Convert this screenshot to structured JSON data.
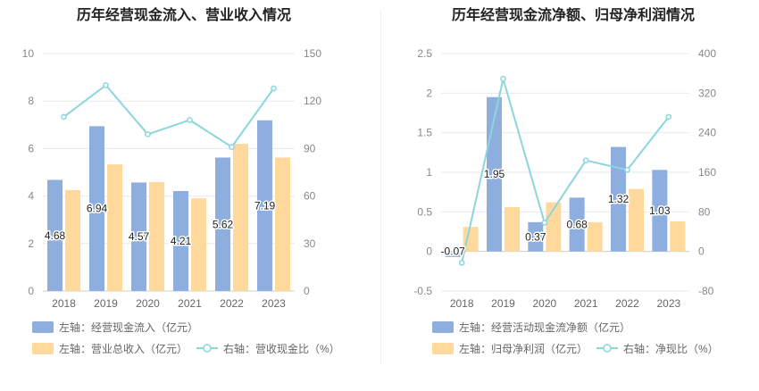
{
  "colors": {
    "bar_primary": "#8eaee0",
    "bar_secondary": "#ffd99c",
    "line": "#8ad6dc",
    "grid": "#e6e9f0"
  },
  "chart_data": [
    {
      "type": "bar",
      "title": "历年经营现金流入、营业收入情况",
      "categories": [
        "2018",
        "2019",
        "2020",
        "2021",
        "2022",
        "2023"
      ],
      "y_left": {
        "ylim": [
          0,
          10
        ],
        "ticks": [
          "0",
          "2",
          "4",
          "6",
          "8",
          "10"
        ]
      },
      "y_right": {
        "ylim": [
          0,
          150
        ],
        "ticks": [
          "0",
          "30",
          "60",
          "90",
          "120",
          "150"
        ]
      },
      "series": [
        {
          "name": "左轴：经营现金流入（亿元）",
          "kind": "bar",
          "axis": "left",
          "values": [
            4.68,
            6.94,
            4.57,
            4.21,
            5.62,
            7.19
          ],
          "labels": [
            "4.68",
            "6.94",
            "4.57",
            "4.21",
            "5.62",
            "7.19"
          ]
        },
        {
          "name": "左轴：营业总收入（亿元）",
          "kind": "bar",
          "axis": "left",
          "values": [
            4.25,
            5.33,
            4.59,
            3.9,
            6.2,
            5.62
          ]
        },
        {
          "name": "右轴：营收现金比（%）",
          "kind": "line",
          "axis": "right",
          "values": [
            110,
            130,
            99,
            108,
            91,
            128
          ]
        }
      ],
      "legend_position": "bottom",
      "grid": true
    },
    {
      "type": "bar",
      "title": "历年经营现金流净额、归母净利润情况",
      "categories": [
        "2018",
        "2019",
        "2020",
        "2021",
        "2022",
        "2023"
      ],
      "y_left": {
        "ylim": [
          -0.5,
          2.5
        ],
        "ticks": [
          "-0.5",
          "0",
          "0.5",
          "1",
          "1.5",
          "2",
          "2.5"
        ]
      },
      "y_right": {
        "ylim": [
          -80,
          400
        ],
        "ticks": [
          "-80",
          "0",
          "80",
          "160",
          "240",
          "320",
          "400"
        ]
      },
      "series": [
        {
          "name": "左轴：经营活动现金流净额（亿元）",
          "kind": "bar",
          "axis": "left",
          "values": [
            -0.07,
            1.95,
            0.37,
            0.68,
            1.32,
            1.03
          ],
          "labels": [
            "-0.07",
            "1.95",
            "0.37",
            "0.68",
            "1.32",
            "1.03"
          ]
        },
        {
          "name": "左轴：归母净利润（亿元）",
          "kind": "bar",
          "axis": "left",
          "values": [
            0.31,
            0.56,
            0.62,
            0.37,
            0.79,
            0.38
          ]
        },
        {
          "name": "右轴：净现比（%）",
          "kind": "line",
          "axis": "right",
          "values": [
            -23,
            349,
            58,
            184,
            165,
            272
          ]
        }
      ],
      "legend_position": "bottom",
      "grid": true
    }
  ]
}
